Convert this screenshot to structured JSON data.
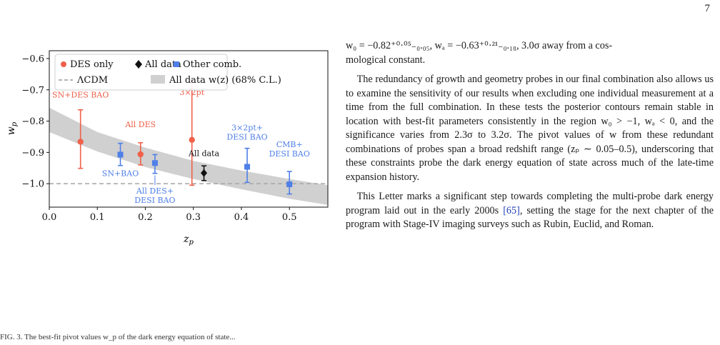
{
  "page_number": "7",
  "colors": {
    "des_only": "#f0604a",
    "all_data": "#111111",
    "other_comb": "#4f7fe8",
    "lcdm": "#aaaaaa",
    "band": "#d0d0d0"
  },
  "chart_data": {
    "type": "scatter",
    "xlabel": "z_p",
    "ylabel": "w_p",
    "xlim": [
      0.0,
      0.58
    ],
    "ylim": [
      -1.075,
      -0.575
    ],
    "xticks": [
      0.0,
      0.1,
      0.2,
      0.3,
      0.4,
      0.5
    ],
    "xtick_labels": [
      "0.0",
      "0.1",
      "0.2",
      "0.3",
      "0.4",
      "0.5"
    ],
    "yticks": [
      -0.6,
      -0.7,
      -0.8,
      -0.9,
      -1.0
    ],
    "ytick_labels": [
      "−0.6",
      "−0.7",
      "−0.8",
      "−0.9",
      "−1.0"
    ],
    "grid": false,
    "legend": {
      "placement": "top",
      "entries": [
        {
          "label": "DES only",
          "marker": "circle",
          "color": "#f0604a"
        },
        {
          "label": "All data",
          "marker": "diamond",
          "color": "#111111"
        },
        {
          "label": "Other comb.",
          "marker": "square",
          "color": "#4f7fe8"
        },
        {
          "label": "ΛCDM",
          "marker": "dashed-line",
          "color": "#aaaaaa"
        },
        {
          "label": "All data w(z) (68% C.L.)",
          "marker": "band",
          "color": "#d0d0d0"
        }
      ]
    },
    "reference_line": {
      "name": "ΛCDM",
      "y": -1.0
    },
    "band": {
      "name": "All data w(z) (68% C.L.)",
      "x": [
        0.0,
        0.1,
        0.2,
        0.3,
        0.4,
        0.5,
        0.58
      ],
      "upper": [
        -0.757,
        -0.835,
        -0.885,
        -0.927,
        -0.958,
        -0.985,
        -1.005
      ],
      "lower": [
        -0.835,
        -0.897,
        -0.947,
        -0.985,
        -1.018,
        -1.048,
        -1.068
      ]
    },
    "points": [
      {
        "label": "SN+DES BAO",
        "group": "DES only",
        "marker": "circle",
        "x": 0.065,
        "y": -0.866,
        "yerr_low": 0.085,
        "yerr_high": 0.102
      },
      {
        "label": "All DES",
        "group": "DES only",
        "marker": "circle",
        "x": 0.19,
        "y": -0.906,
        "yerr_low": 0.034,
        "yerr_high": 0.037
      },
      {
        "label": "3×2pt",
        "group": "DES only",
        "marker": "circle",
        "x": 0.297,
        "y": -0.86,
        "yerr_low": 0.145,
        "yerr_high": 0.193
      },
      {
        "label": "SN+BAO",
        "group": "Other comb.",
        "marker": "square",
        "x": 0.148,
        "y": -0.907,
        "yerr_low": 0.035,
        "yerr_high": 0.036
      },
      {
        "label": "All DES+\nDESI BAO",
        "group": "Other comb.",
        "marker": "square",
        "x": 0.22,
        "y": -0.934,
        "yerr_low": 0.033,
        "yerr_high": 0.027
      },
      {
        "label": "3×2pt+\nDESI BAO",
        "group": "Other comb.",
        "marker": "square",
        "x": 0.412,
        "y": -0.946,
        "yerr_low": 0.05,
        "yerr_high": 0.059
      },
      {
        "label": "CMB+\nDESI BAO",
        "group": "Other comb.",
        "marker": "square",
        "x": 0.5,
        "y": -1.002,
        "yerr_low": 0.031,
        "yerr_high": 0.041
      },
      {
        "label": "All data",
        "group": "All data",
        "marker": "diamond",
        "x": 0.322,
        "y": -0.966,
        "yerr_low": 0.024,
        "yerr_high": 0.023
      }
    ]
  },
  "text": {
    "line1": "w₀ = −0.82⁺⁰·⁰⁵₋₀.₀₅, wₐ = −0.63⁺⁰·²¹₋₀.₁₈, 3.0σ away from a cos-",
    "line2": "mological constant.",
    "para2": "The redundancy of growth and geometry probes in our final combination also allows us to examine the sensitivity of our results when excluding one individual measurement at a time from the full combination. In these tests the posterior contours remain stable in location with best-fit parameters consistently in the region w₀ > −1, wₐ < 0, and the significance varies from 2.3σ to 3.2σ. The pivot values of w from these redundant combinations of probes span a broad redshift range (zₚ ∼ 0.05–0.5), underscoring that these constraints probe the dark energy equation of state across much of the late-time expansion history.",
    "para3_before": "This Letter marks a significant step towards completing the multi-probe dark energy program laid out in the early 2000s ",
    "para3_cite": "[65]",
    "para3_after": ", setting the stage for the next chapter of the program with Stage-IV imaging surveys such as Rubin, Euclid, and Roman."
  },
  "footer_fragment": "FIG. 3. The best-fit pivot values w_p of the dark energy equation of state..."
}
